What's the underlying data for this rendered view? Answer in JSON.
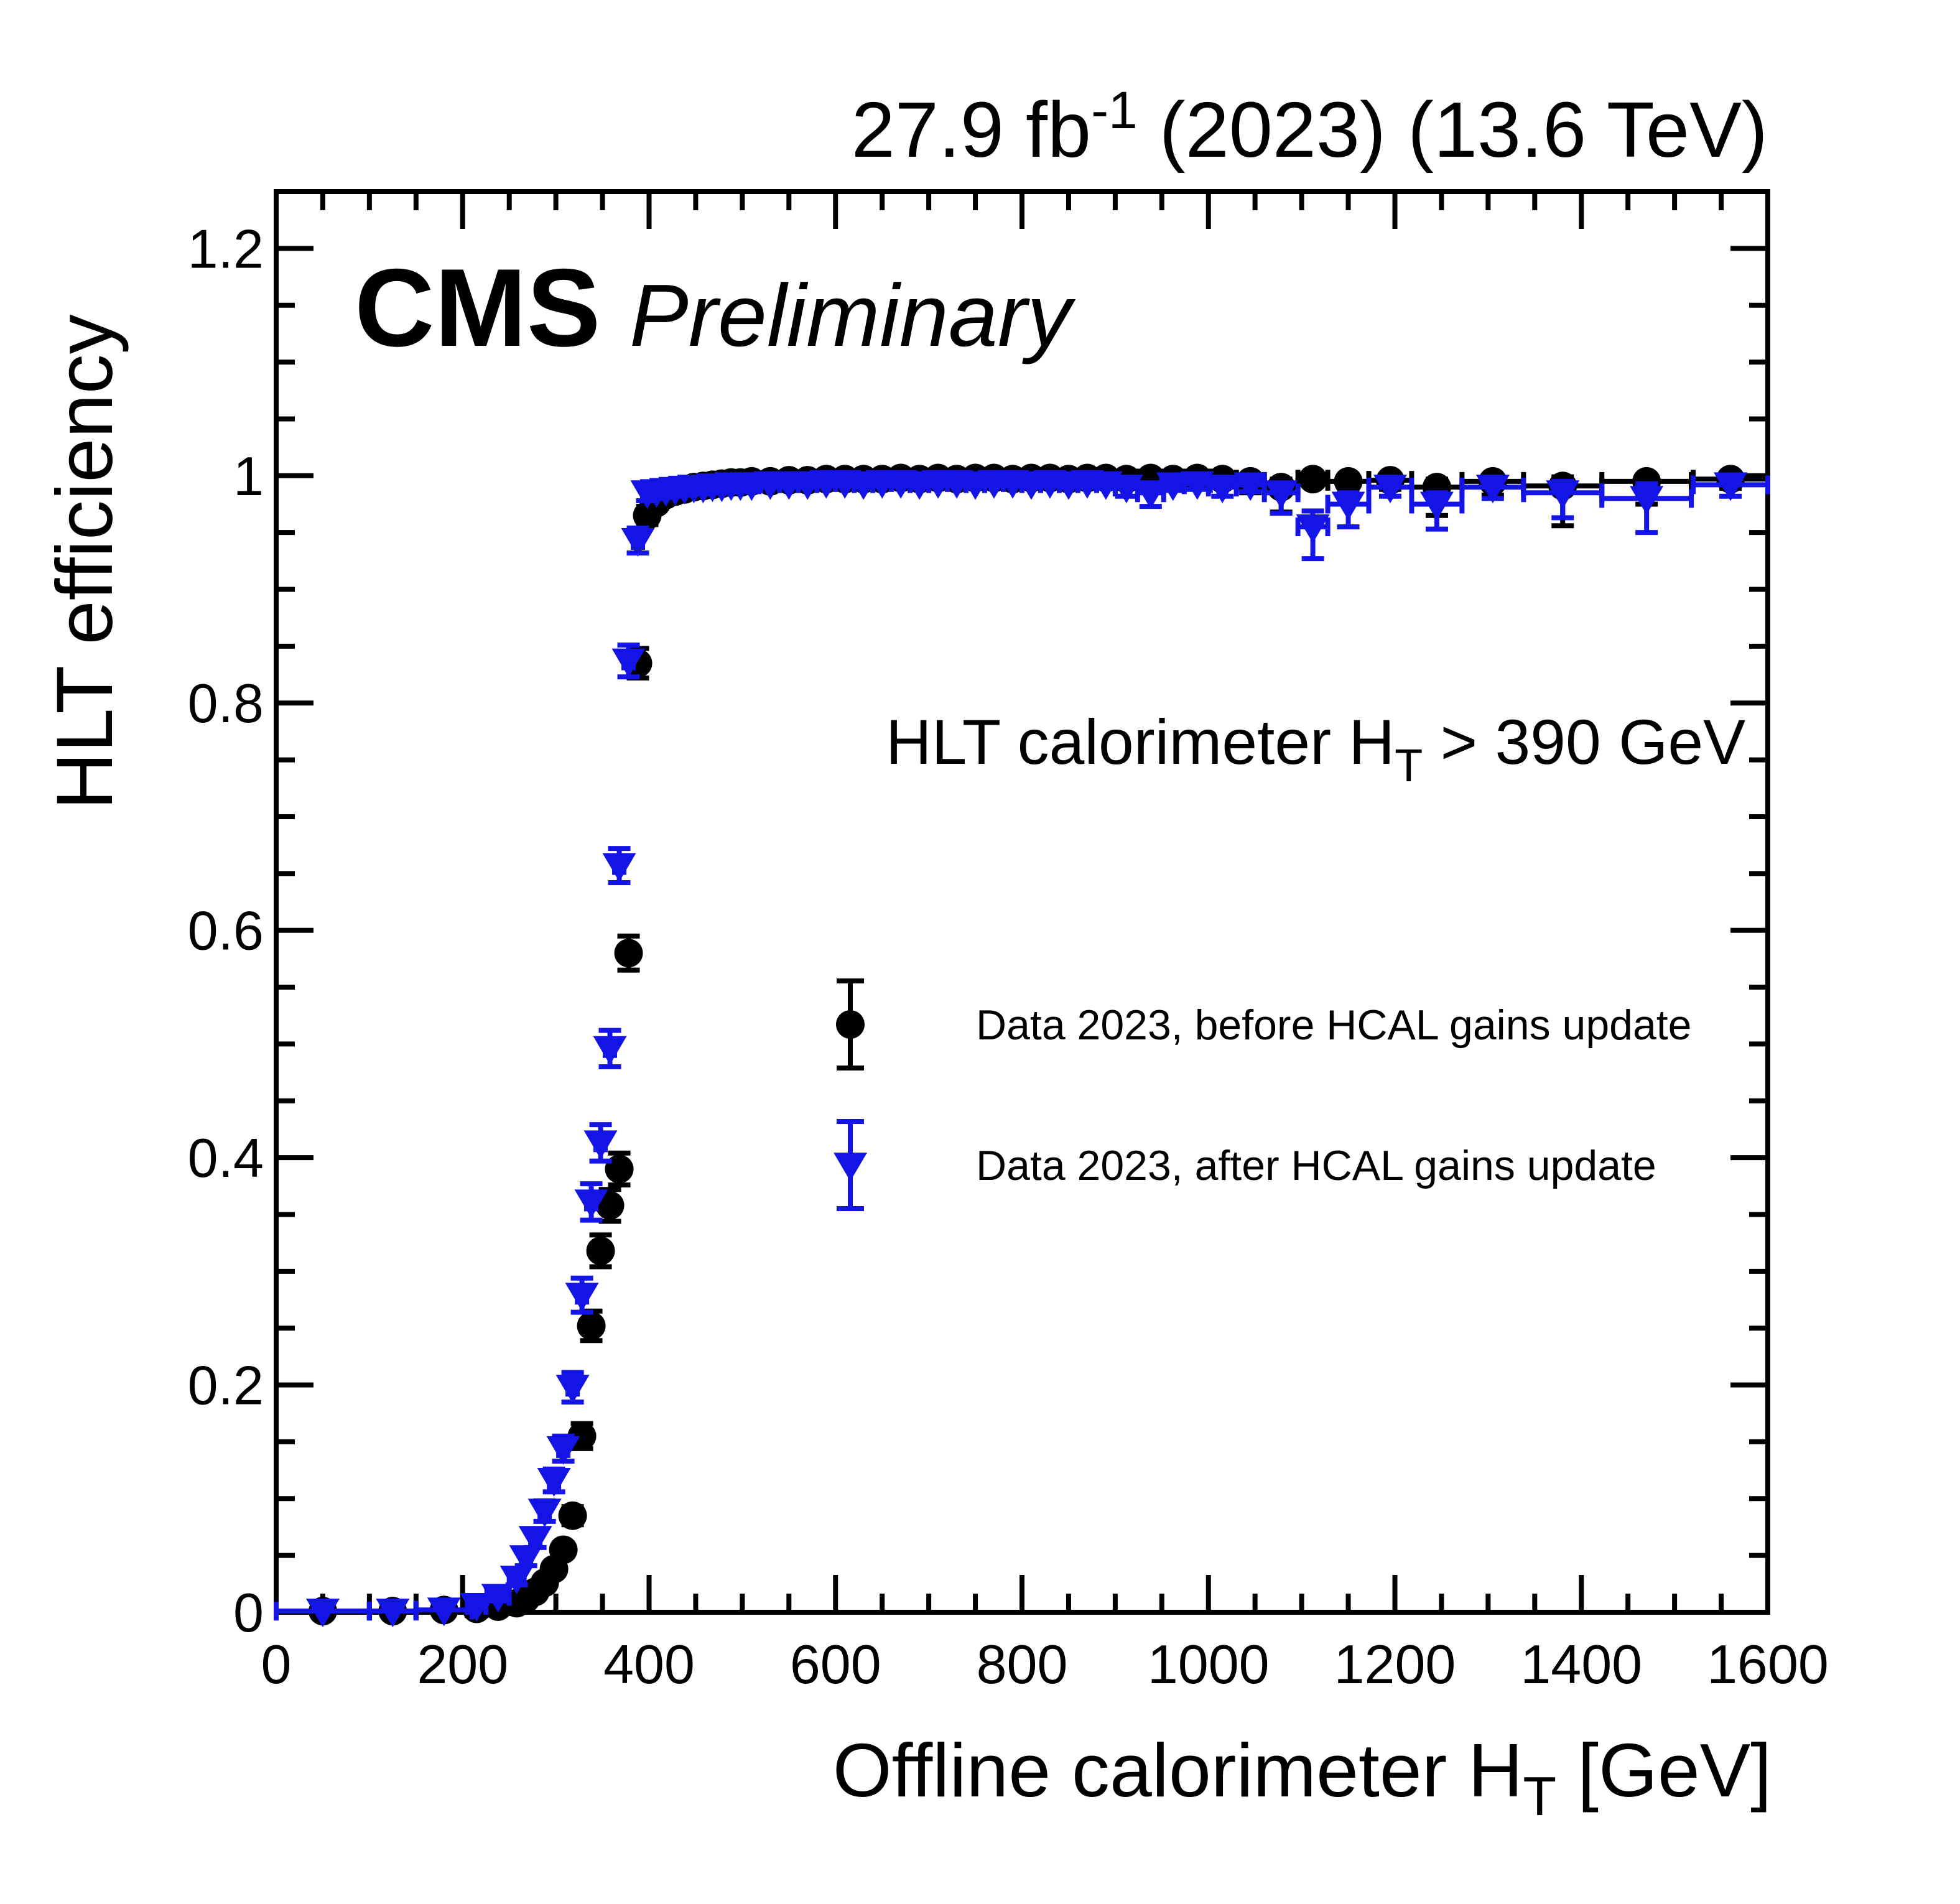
{
  "header": {
    "lumi_prefix": "27.9 fb",
    "lumi_sup": "-1",
    "lumi_suffix": " (2023) (13.6 TeV)",
    "cms": "CMS",
    "preliminary": "Preliminary"
  },
  "annotation": {
    "prefix": "HLT calorimeter H",
    "sub": "T",
    "suffix": " > 390 GeV"
  },
  "legend": [
    {
      "label": "Data 2023, before HCAL gains update",
      "marker": "circle",
      "color": "#000000"
    },
    {
      "label": "Data 2023, after HCAL gains update",
      "marker": "triangle-down",
      "color": "#1414e6"
    }
  ],
  "axes": {
    "x_title_prefix": "Offline calorimeter H",
    "x_title_sub": "T",
    "x_title_suffix": " [GeV]",
    "y_title": "HLT efficiency",
    "x_tick_labels": [
      "0",
      "200",
      "400",
      "600",
      "800",
      "1000",
      "1200",
      "1400",
      "1600"
    ],
    "y_tick_labels": [
      "0",
      "0.2",
      "0.4",
      "0.6",
      "0.8",
      "1",
      "1.2"
    ]
  },
  "chart_data": {
    "type": "scatter",
    "title": "27.9 fb-1 (2023) (13.6 TeV)",
    "xlabel": "Offline calorimeter HT [GeV]",
    "ylabel": "HLT efficiency",
    "annotation": "HLT calorimeter HT > 390 GeV",
    "xlim": [
      0,
      1600
    ],
    "ylim": [
      0,
      1.25
    ],
    "x_tick_values": [
      0,
      200,
      400,
      600,
      800,
      1000,
      1200,
      1400,
      1600
    ],
    "y_tick_values": [
      0,
      0.2,
      0.4,
      0.6,
      0.8,
      1.0,
      1.2
    ],
    "x_minor_step": 50,
    "y_minor_step": 0.05,
    "grid": false,
    "legend_position": "center-right",
    "series": [
      {
        "name": "Data 2023, before HCAL gains update",
        "marker": "circle",
        "color": "#000000",
        "points": [
          [
            50,
            50,
            0.001,
            0.001,
            0.001
          ],
          [
            125,
            25,
            0.001,
            0.001,
            0.001
          ],
          [
            180,
            30,
            0.002,
            0.001,
            0.001
          ],
          [
            215,
            10,
            0.003,
            0.001,
            0.001
          ],
          [
            238,
            12,
            0.005,
            0.002,
            0.002
          ],
          [
            258,
            8,
            0.008,
            0.002,
            0.002
          ],
          [
            268,
            5,
            0.012,
            0.003,
            0.003
          ],
          [
            278,
            5,
            0.018,
            0.003,
            0.003
          ],
          [
            288,
            5,
            0.026,
            0.004,
            0.004
          ],
          [
            298,
            5,
            0.038,
            0.005,
            0.005
          ],
          [
            308,
            5,
            0.055,
            0.006,
            0.006
          ],
          [
            318,
            5,
            0.085,
            0.008,
            0.008
          ],
          [
            328,
            5,
            0.155,
            0.011,
            0.011
          ],
          [
            338,
            5,
            0.252,
            0.013,
            0.013
          ],
          [
            348,
            5,
            0.318,
            0.014,
            0.014
          ],
          [
            358,
            5,
            0.358,
            0.014,
            0.014
          ],
          [
            368,
            5,
            0.39,
            0.014,
            0.014
          ],
          [
            378,
            5,
            0.58,
            0.015,
            0.015
          ],
          [
            388,
            5,
            0.835,
            0.013,
            0.013
          ],
          [
            398,
            5,
            0.965,
            0.008,
            0.008
          ],
          [
            408,
            5,
            0.976,
            0.005,
            0.004
          ],
          [
            418,
            5,
            0.983,
            0.004,
            0.003
          ],
          [
            428,
            5,
            0.986,
            0.004,
            0.003
          ],
          [
            438,
            5,
            0.988,
            0.003,
            0.002
          ],
          [
            448,
            5,
            0.99,
            0.003,
            0.002
          ],
          [
            458,
            5,
            0.991,
            0.003,
            0.002
          ],
          [
            468,
            5,
            0.992,
            0.003,
            0.002
          ],
          [
            478,
            5,
            0.993,
            0.002,
            0.002
          ],
          [
            488,
            5,
            0.994,
            0.002,
            0.002
          ],
          [
            498,
            5,
            0.994,
            0.002,
            0.002
          ],
          [
            510,
            8,
            0.995,
            0.002,
            0.001
          ],
          [
            530,
            10,
            0.995,
            0.002,
            0.001
          ],
          [
            550,
            10,
            0.996,
            0.002,
            0.001
          ],
          [
            570,
            10,
            0.996,
            0.002,
            0.001
          ],
          [
            590,
            10,
            0.997,
            0.002,
            0.001
          ],
          [
            610,
            10,
            0.997,
            0.002,
            0.001
          ],
          [
            630,
            10,
            0.997,
            0.002,
            0.001
          ],
          [
            650,
            10,
            0.997,
            0.002,
            0.001
          ],
          [
            670,
            10,
            0.998,
            0.002,
            0.001
          ],
          [
            690,
            10,
            0.997,
            0.002,
            0.001
          ],
          [
            710,
            10,
            0.998,
            0.002,
            0.001
          ],
          [
            730,
            10,
            0.997,
            0.002,
            0.001
          ],
          [
            750,
            10,
            0.998,
            0.002,
            0.001
          ],
          [
            770,
            10,
            0.998,
            0.002,
            0.001
          ],
          [
            790,
            10,
            0.997,
            0.002,
            0.001
          ],
          [
            810,
            10,
            0.998,
            0.002,
            0.001
          ],
          [
            830,
            10,
            0.998,
            0.002,
            0.001
          ],
          [
            850,
            10,
            0.997,
            0.002,
            0.001
          ],
          [
            870,
            10,
            0.998,
            0.003,
            0.001
          ],
          [
            890,
            10,
            0.998,
            0.003,
            0.001
          ],
          [
            912,
            12,
            0.997,
            0.003,
            0.002
          ],
          [
            938,
            14,
            0.998,
            0.004,
            0.002
          ],
          [
            962,
            12,
            0.997,
            0.004,
            0.002
          ],
          [
            988,
            14,
            0.998,
            0.005,
            0.002
          ],
          [
            1015,
            15,
            0.997,
            0.006,
            0.003
          ],
          [
            1045,
            15,
            0.995,
            0.01,
            0.004
          ],
          [
            1078,
            18,
            0.99,
            0.022,
            0.007
          ],
          [
            1112,
            16,
            0.997,
            0.006,
            0.002
          ],
          [
            1150,
            22,
            0.995,
            0.01,
            0.004
          ],
          [
            1195,
            23,
            0.996,
            0.008,
            0.003
          ],
          [
            1245,
            27,
            0.99,
            0.025,
            0.007
          ],
          [
            1305,
            33,
            0.995,
            0.012,
            0.004
          ],
          [
            1380,
            42,
            0.991,
            0.035,
            0.008
          ],
          [
            1470,
            48,
            0.995,
            0.02,
            0.005
          ],
          [
            1560,
            40,
            0.997,
            0.008,
            0.002
          ]
        ]
      },
      {
        "name": "Data 2023, after HCAL gains update",
        "marker": "triangle-down",
        "color": "#1414e6",
        "points": [
          [
            50,
            50,
            0.001,
            0.001,
            0.001
          ],
          [
            125,
            25,
            0.001,
            0.001,
            0.001
          ],
          [
            180,
            30,
            0.002,
            0.001,
            0.001
          ],
          [
            215,
            10,
            0.006,
            0.002,
            0.002
          ],
          [
            238,
            12,
            0.014,
            0.004,
            0.004
          ],
          [
            258,
            8,
            0.03,
            0.006,
            0.006
          ],
          [
            268,
            5,
            0.048,
            0.007,
            0.007
          ],
          [
            278,
            5,
            0.065,
            0.008,
            0.008
          ],
          [
            288,
            5,
            0.089,
            0.009,
            0.009
          ],
          [
            298,
            5,
            0.116,
            0.01,
            0.01
          ],
          [
            308,
            5,
            0.144,
            0.011,
            0.011
          ],
          [
            318,
            5,
            0.198,
            0.013,
            0.013
          ],
          [
            328,
            5,
            0.279,
            0.015,
            0.015
          ],
          [
            338,
            5,
            0.361,
            0.016,
            0.016
          ],
          [
            348,
            5,
            0.413,
            0.016,
            0.016
          ],
          [
            358,
            5,
            0.496,
            0.016,
            0.016
          ],
          [
            368,
            5,
            0.657,
            0.015,
            0.015
          ],
          [
            378,
            5,
            0.837,
            0.014,
            0.014
          ],
          [
            388,
            5,
            0.943,
            0.011,
            0.011
          ],
          [
            398,
            5,
            0.985,
            0.007,
            0.007
          ],
          [
            408,
            5,
            0.986,
            0.005,
            0.004
          ],
          [
            418,
            5,
            0.987,
            0.004,
            0.003
          ],
          [
            428,
            5,
            0.988,
            0.004,
            0.003
          ],
          [
            438,
            5,
            0.989,
            0.004,
            0.003
          ],
          [
            448,
            5,
            0.99,
            0.003,
            0.002
          ],
          [
            458,
            5,
            0.99,
            0.003,
            0.002
          ],
          [
            468,
            5,
            0.991,
            0.003,
            0.002
          ],
          [
            478,
            5,
            0.991,
            0.003,
            0.002
          ],
          [
            488,
            5,
            0.992,
            0.003,
            0.002
          ],
          [
            498,
            5,
            0.992,
            0.003,
            0.002
          ],
          [
            510,
            8,
            0.992,
            0.003,
            0.002
          ],
          [
            530,
            10,
            0.993,
            0.003,
            0.002
          ],
          [
            550,
            10,
            0.993,
            0.003,
            0.002
          ],
          [
            570,
            10,
            0.993,
            0.003,
            0.002
          ],
          [
            590,
            10,
            0.994,
            0.003,
            0.002
          ],
          [
            610,
            10,
            0.994,
            0.003,
            0.002
          ],
          [
            630,
            10,
            0.993,
            0.003,
            0.002
          ],
          [
            650,
            10,
            0.994,
            0.003,
            0.002
          ],
          [
            670,
            10,
            0.994,
            0.003,
            0.002
          ],
          [
            690,
            10,
            0.993,
            0.003,
            0.002
          ],
          [
            710,
            10,
            0.994,
            0.003,
            0.002
          ],
          [
            730,
            10,
            0.994,
            0.003,
            0.002
          ],
          [
            750,
            10,
            0.993,
            0.003,
            0.002
          ],
          [
            770,
            10,
            0.994,
            0.003,
            0.002
          ],
          [
            790,
            10,
            0.994,
            0.003,
            0.002
          ],
          [
            810,
            10,
            0.993,
            0.003,
            0.002
          ],
          [
            830,
            10,
            0.994,
            0.003,
            0.002
          ],
          [
            850,
            10,
            0.993,
            0.003,
            0.002
          ],
          [
            870,
            10,
            0.994,
            0.004,
            0.002
          ],
          [
            890,
            10,
            0.993,
            0.004,
            0.002
          ],
          [
            912,
            12,
            0.99,
            0.008,
            0.004
          ],
          [
            938,
            14,
            0.985,
            0.012,
            0.006
          ],
          [
            962,
            12,
            0.992,
            0.005,
            0.003
          ],
          [
            988,
            14,
            0.993,
            0.005,
            0.003
          ],
          [
            1015,
            15,
            0.99,
            0.008,
            0.004
          ],
          [
            1045,
            15,
            0.992,
            0.006,
            0.003
          ],
          [
            1078,
            18,
            0.985,
            0.018,
            0.008
          ],
          [
            1112,
            16,
            0.955,
            0.028,
            0.014
          ],
          [
            1150,
            22,
            0.975,
            0.02,
            0.01
          ],
          [
            1195,
            23,
            0.99,
            0.008,
            0.004
          ],
          [
            1245,
            27,
            0.975,
            0.022,
            0.01
          ],
          [
            1305,
            33,
            0.99,
            0.01,
            0.005
          ],
          [
            1380,
            42,
            0.985,
            0.022,
            0.01
          ],
          [
            1470,
            48,
            0.98,
            0.03,
            0.013
          ],
          [
            1560,
            40,
            0.992,
            0.01,
            0.005
          ]
        ]
      }
    ]
  }
}
